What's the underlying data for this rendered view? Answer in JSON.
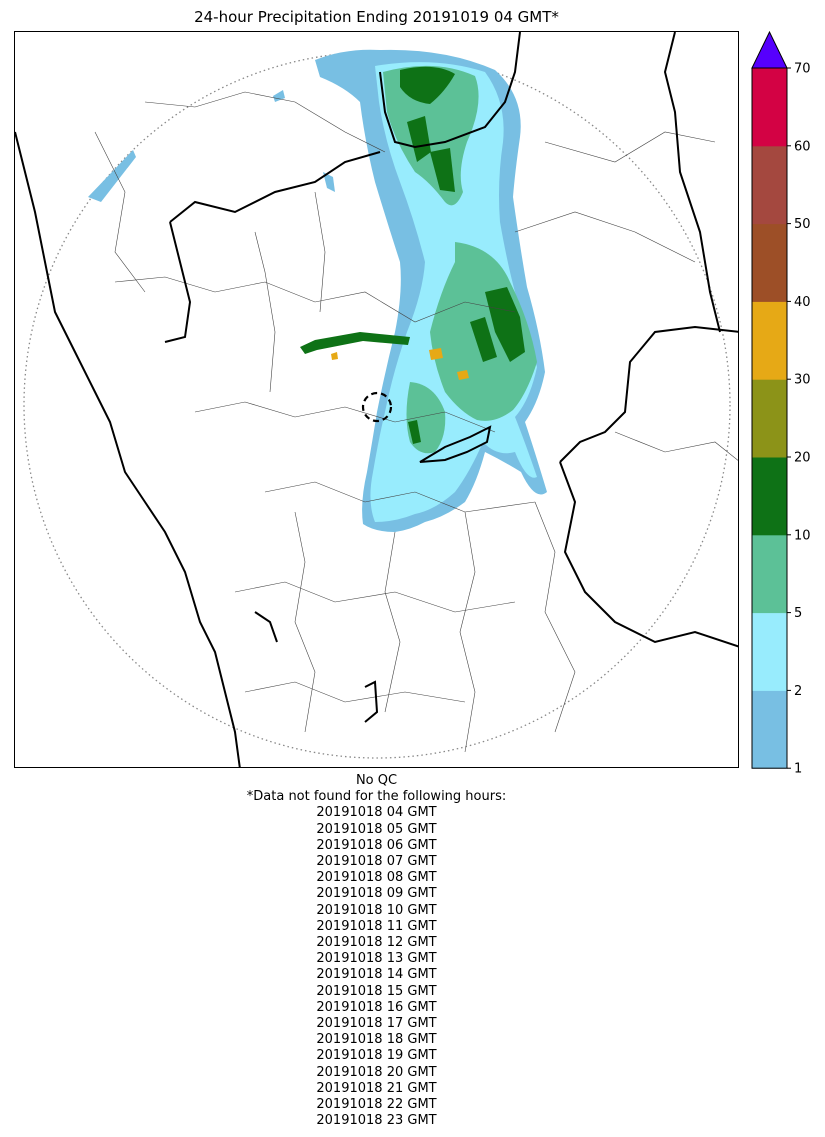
{
  "title": "24-hour Precipitation Ending 20191019 04 GMT*",
  "legend": {
    "ticks": [
      "1",
      "2",
      "5",
      "10",
      "20",
      "30",
      "40",
      "50",
      "60",
      "70"
    ],
    "bins": [
      {
        "from": 1,
        "to": 2,
        "color": "#78bfe3"
      },
      {
        "from": 2,
        "to": 5,
        "color": "#98ecfd"
      },
      {
        "from": 5,
        "to": 10,
        "color": "#5cc197"
      },
      {
        "from": 10,
        "to": 20,
        "color": "#0e7216"
      },
      {
        "from": 20,
        "to": 30,
        "color": "#8c9318"
      },
      {
        "from": 30,
        "to": 40,
        "color": "#e6a916"
      },
      {
        "from": 40,
        "to": 50,
        "color": "#9d4f27"
      },
      {
        "from": 50,
        "to": 60,
        "color": "#a4483f"
      },
      {
        "from": 60,
        "to": 70,
        "color": "#d30244"
      }
    ],
    "extend_color": "#5600fd"
  },
  "footer": {
    "qc_note": "No QC",
    "missing_note": "*Data not found for the following hours:",
    "missing_hours": [
      "20191018 04 GMT",
      "20191018 05 GMT",
      "20191018 06 GMT",
      "20191018 07 GMT",
      "20191018 08 GMT",
      "20191018 09 GMT",
      "20191018 10 GMT",
      "20191018 11 GMT",
      "20191018 12 GMT",
      "20191018 13 GMT",
      "20191018 14 GMT",
      "20191018 15 GMT",
      "20191018 16 GMT",
      "20191018 17 GMT",
      "20191018 18 GMT",
      "20191018 19 GMT",
      "20191018 20 GMT",
      "20191018 21 GMT",
      "20191018 22 GMT",
      "20191018 23 GMT"
    ]
  }
}
